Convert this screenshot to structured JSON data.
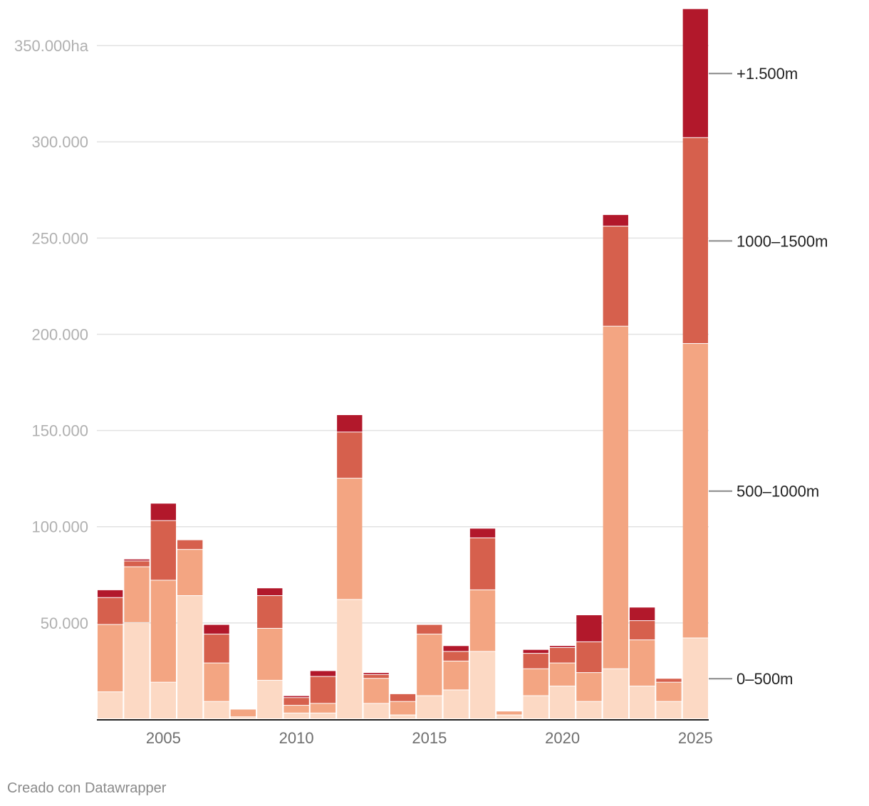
{
  "chart_data": {
    "type": "bar",
    "stacked": true,
    "title": "",
    "xlabel": "",
    "ylabel": "",
    "y_unit_suffix": "ha",
    "ylim": [
      0,
      370000
    ],
    "yticks": [
      {
        "value": 50000,
        "label": "50.000"
      },
      {
        "value": 100000,
        "label": "100.000"
      },
      {
        "value": 150000,
        "label": "150.000"
      },
      {
        "value": 200000,
        "label": "200.000"
      },
      {
        "value": 250000,
        "label": "250.000"
      },
      {
        "value": 300000,
        "label": "300.000"
      },
      {
        "value": 350000,
        "label": "350.000ha"
      }
    ],
    "xticks": [
      {
        "value": 2005,
        "label": "2005"
      },
      {
        "value": 2010,
        "label": "2010"
      },
      {
        "value": 2015,
        "label": "2015"
      },
      {
        "value": 2020,
        "label": "2020"
      },
      {
        "value": 2025,
        "label": "2025"
      }
    ],
    "categories": [
      2003,
      2004,
      2005,
      2006,
      2007,
      2008,
      2009,
      2010,
      2011,
      2012,
      2013,
      2014,
      2015,
      2016,
      2017,
      2018,
      2019,
      2020,
      2021,
      2022,
      2023,
      2024,
      2025
    ],
    "series": [
      {
        "name": "0–500m",
        "color": "#fcd9c4",
        "values": [
          14000,
          50000,
          19000,
          64000,
          9000,
          1000,
          20000,
          3000,
          3000,
          62000,
          8000,
          2000,
          12000,
          15000,
          35000,
          2000,
          12000,
          17000,
          9000,
          26000,
          17000,
          9000,
          42000
        ]
      },
      {
        "name": "500–1000m",
        "color": "#f3a582",
        "values": [
          35000,
          29000,
          53000,
          24000,
          20000,
          4000,
          27000,
          4000,
          5000,
          63000,
          13000,
          7000,
          32000,
          15000,
          32000,
          2000,
          14000,
          12000,
          15000,
          178000,
          24000,
          10000,
          153000
        ]
      },
      {
        "name": "1000–1500m",
        "color": "#d6604d",
        "values": [
          14000,
          3000,
          31000,
          5000,
          15000,
          0,
          17000,
          4000,
          14000,
          24000,
          2000,
          4000,
          5000,
          5000,
          27000,
          0,
          8000,
          8000,
          16000,
          52000,
          10000,
          2000,
          107000
        ]
      },
      {
        "name": "+1.500m",
        "color": "#b2182b",
        "values": [
          4000,
          1000,
          9000,
          0,
          5000,
          0,
          4000,
          1000,
          3000,
          9000,
          1000,
          0,
          0,
          3000,
          5000,
          0,
          2000,
          1000,
          14000,
          6000,
          7000,
          0,
          67000
        ]
      }
    ],
    "legend_position": "right-inline",
    "legend_labels": [
      "0–500m",
      "500–1000m",
      "1000–1500m",
      "+1.500m"
    ],
    "grid": true,
    "credit": "Creado con Datawrapper"
  }
}
